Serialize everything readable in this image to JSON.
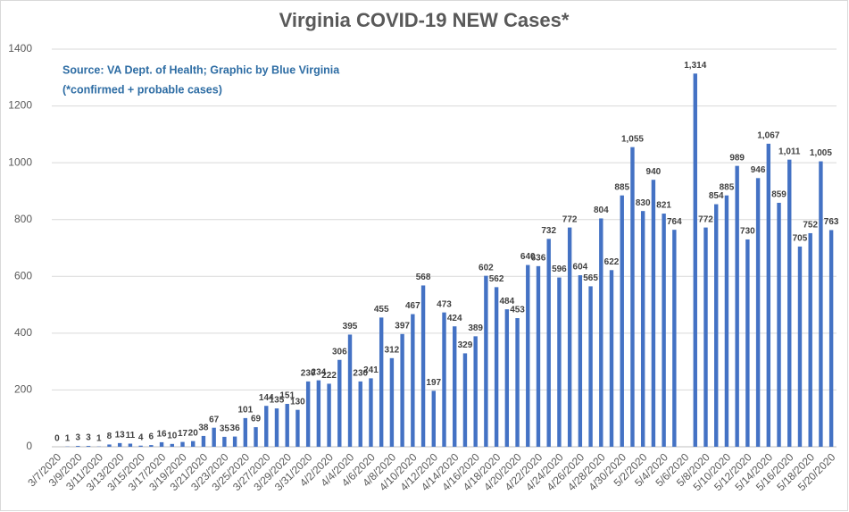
{
  "chart_data": {
    "type": "bar",
    "title": "Virginia COVID-19 NEW Cases*",
    "annotations": [
      "Source: VA Dept. of Health; Graphic by Blue Virginia",
      "(*confirmed + probable cases)"
    ],
    "categories": [
      "3/7/2020",
      null,
      "3/9/2020",
      null,
      "3/11/2020",
      null,
      "3/13/2020",
      null,
      "3/15/2020",
      null,
      "3/17/2020",
      null,
      "3/19/2020",
      null,
      "3/21/2020",
      null,
      "3/23/2020",
      null,
      "3/25/2020",
      null,
      "3/27/2020",
      null,
      "3/29/2020",
      null,
      "3/31/2020",
      null,
      "4/2/2020",
      null,
      "4/4/2020",
      null,
      "4/6/2020",
      null,
      "4/8/2020",
      null,
      "4/10/2020",
      null,
      "4/12/2020",
      null,
      "4/14/2020",
      null,
      "4/16/2020",
      null,
      "4/18/2020",
      null,
      "4/20/2020",
      null,
      "4/22/2020",
      null,
      "4/24/2020",
      null,
      "4/26/2020",
      null,
      "4/28/2020",
      null,
      "4/30/2020",
      null,
      "5/2/2020",
      null,
      "5/4/2020",
      null,
      "5/6/2020",
      null,
      "5/8/2020",
      null,
      "5/10/2020",
      null,
      "5/12/2020",
      null,
      "5/14/2020",
      null,
      "5/16/2020",
      null,
      "5/18/2020",
      null,
      "5/20/2020"
    ],
    "values": [
      0,
      1,
      3,
      3,
      1,
      8,
      13,
      11,
      4,
      6,
      16,
      10,
      17,
      20,
      38,
      67,
      35,
      36,
      101,
      69,
      144,
      135,
      151,
      130,
      230,
      234,
      222,
      306,
      395,
      230,
      241,
      455,
      312,
      397,
      467,
      568,
      197,
      473,
      424,
      329,
      389,
      602,
      562,
      484,
      453,
      640,
      636,
      732,
      596,
      772,
      604,
      565,
      804,
      622,
      885,
      1055,
      830,
      940,
      821,
      764,
      null,
      1314,
      772,
      854,
      885,
      989,
      730,
      946,
      1067,
      859,
      1011,
      705,
      752,
      1005,
      763
    ],
    "value_labels": [
      "0",
      "1",
      "3",
      "3",
      "1",
      "8",
      "13",
      "11",
      "4",
      "6",
      "16",
      "10",
      "17",
      "20",
      "38",
      "67",
      "35",
      "36",
      "101",
      "69",
      "144",
      "135",
      "151",
      "130",
      "230",
      "234",
      "222",
      "306",
      "395",
      "230",
      "241",
      "455",
      "312",
      "397",
      "467",
      "568",
      "197",
      "473",
      "424",
      "329",
      "389",
      "602",
      "562",
      "484",
      "453",
      "640",
      "636",
      "732",
      "596",
      "772",
      "604",
      "565",
      "804",
      "622",
      "885",
      "1,055",
      "830",
      "940",
      "821",
      "764",
      null,
      "1,314",
      "772",
      "854",
      "885",
      "989",
      "730",
      "946",
      "1,067",
      "859",
      "1,011",
      "705",
      "752",
      "1,005",
      "763"
    ],
    "color": "#4472c4",
    "ylim": [
      0,
      1400
    ],
    "yticks": [
      0,
      200,
      400,
      600,
      800,
      1000,
      1200,
      1400
    ],
    "grid": true
  }
}
